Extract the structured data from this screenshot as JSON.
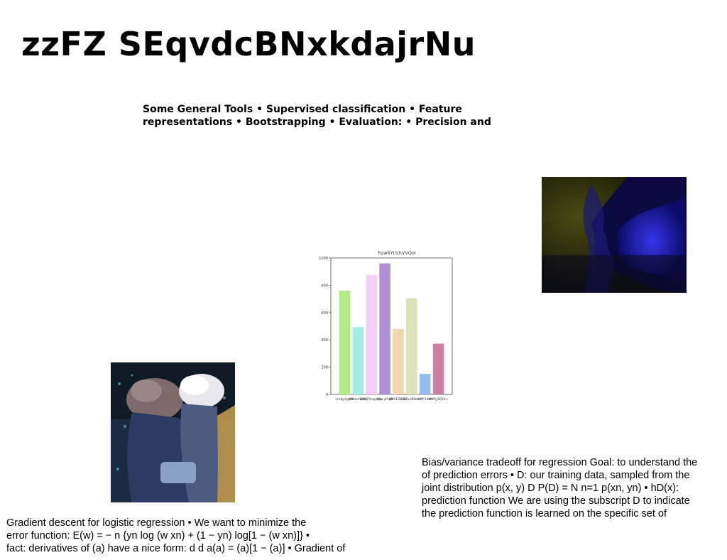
{
  "slide": {
    "title": "zzFZ SEqvdcBNxkdajrNu",
    "tools_lines": [
      "Some General Tools • Supervised classification • Feature",
      "representations • Bootstrapping • Evaluation: • Precision and"
    ],
    "bias_lines": [
      "Bias/variance tradeoff for regression Goal: to understand the",
      "of prediction errors • D: our training data, sampled from the",
      "joint distribution p(x, y) D  P(D) = N  n=1 p(xn, yn) • hD(x):",
      "prediction function We are using the subscript D to indicate",
      "the prediction function is learned on the specific set of"
    ],
    "gradient_lines": [
      "Gradient descent for logistic regression • We want to minimize the",
      "error function: E(w) = − n {yn log (w xn) + (1 − yn) log[1 − (w xn)]} •",
      "fact: derivatives of (a) have a nice form: d d a(a) = (a)[1 − (a)] • Gradient of"
    ]
  },
  "chart_data": {
    "type": "bar",
    "title": "FpwbYIrLhVVQol",
    "categories": [
      "cmKyVgbm",
      "WRtsmBbn",
      "bsMZXmpgNa",
      "Xqo yPnjM",
      "bHXEZKDQ",
      "cGFxLBNdbY",
      "mYCHbM",
      "tAMySOOrv"
    ],
    "values": [
      760,
      495,
      875,
      960,
      480,
      705,
      150,
      372
    ],
    "colors": [
      "#b3ec86",
      "#a5ede6",
      "#f2cff7",
      "#b08fd3",
      "#f2d6ad",
      "#dde3b8",
      "#8fbdf2",
      "#cc7fa3"
    ],
    "ylim": [
      0,
      1000
    ],
    "yticks": [
      0,
      200,
      400,
      600,
      800,
      1000
    ],
    "grid": false
  },
  "images": {
    "kiss_photo": "photo-two-faces-blue",
    "hats_photo": "photo-people-in-hats"
  }
}
